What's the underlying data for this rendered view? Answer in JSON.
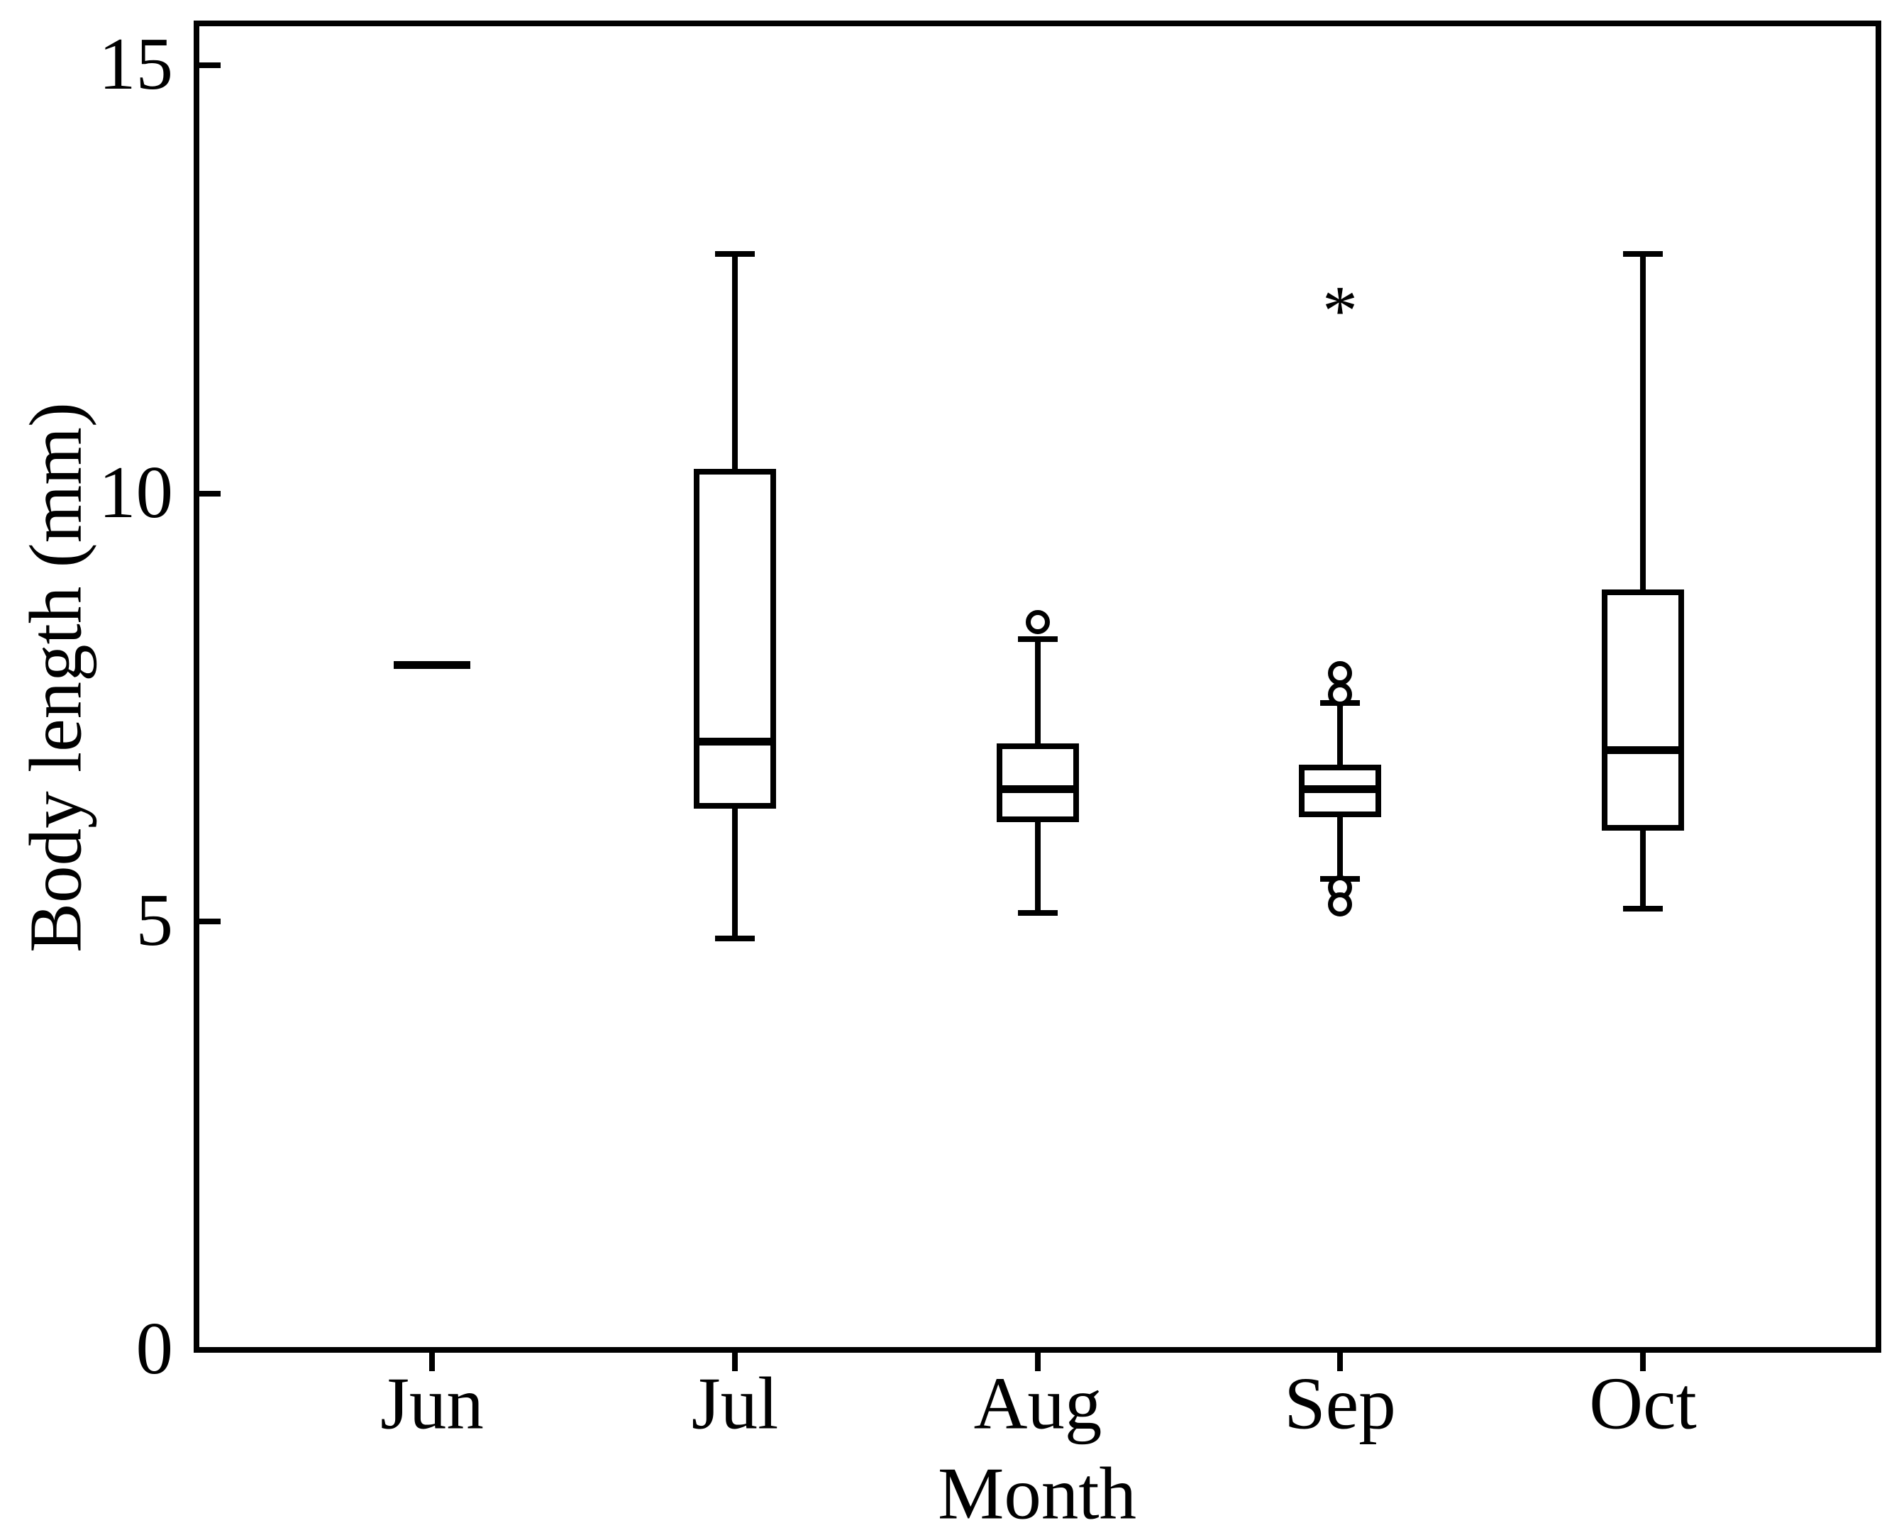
{
  "figure": {
    "background_color": "#ffffff",
    "line_color": "#000000"
  },
  "chart_data": {
    "type": "box",
    "title": "",
    "xlabel": "Month",
    "ylabel": "Body length (mm)",
    "categories": [
      "Jun",
      "Jul",
      "Aug",
      "Sep",
      "Oct"
    ],
    "ylim": [
      0,
      15
    ],
    "yticks": [
      0,
      5,
      10,
      15
    ],
    "ytick_labels": [
      "0",
      "5",
      "10",
      "15"
    ],
    "grid": false,
    "legend": false,
    "outlier_marker": "open-circle",
    "far_outlier_marker": "asterisk",
    "boxes": [
      {
        "category": "Jun",
        "type": "single-value",
        "median": 8.0,
        "outliers": [],
        "far_outliers": []
      },
      {
        "category": "Jul",
        "type": "box",
        "whisker_low": 4.8,
        "q1": 6.35,
        "median": 7.1,
        "q3": 10.25,
        "whisker_high": 12.8,
        "outliers": [],
        "far_outliers": []
      },
      {
        "category": "Aug",
        "type": "box",
        "whisker_low": 5.1,
        "q1": 6.2,
        "median": 6.55,
        "q3": 7.05,
        "whisker_high": 8.3,
        "outliers": [
          8.5
        ],
        "far_outliers": []
      },
      {
        "category": "Sep",
        "type": "box",
        "whisker_low": 5.5,
        "q1": 6.25,
        "median": 6.55,
        "q3": 6.8,
        "whisker_high": 7.55,
        "outliers": [
          7.9,
          7.65,
          5.4,
          5.2
        ],
        "far_outliers": [
          12.3
        ]
      },
      {
        "category": "Oct",
        "type": "box",
        "whisker_low": 5.15,
        "q1": 6.1,
        "median": 7.0,
        "q3": 8.85,
        "whisker_high": 12.8,
        "outliers": [],
        "far_outliers": []
      }
    ]
  }
}
